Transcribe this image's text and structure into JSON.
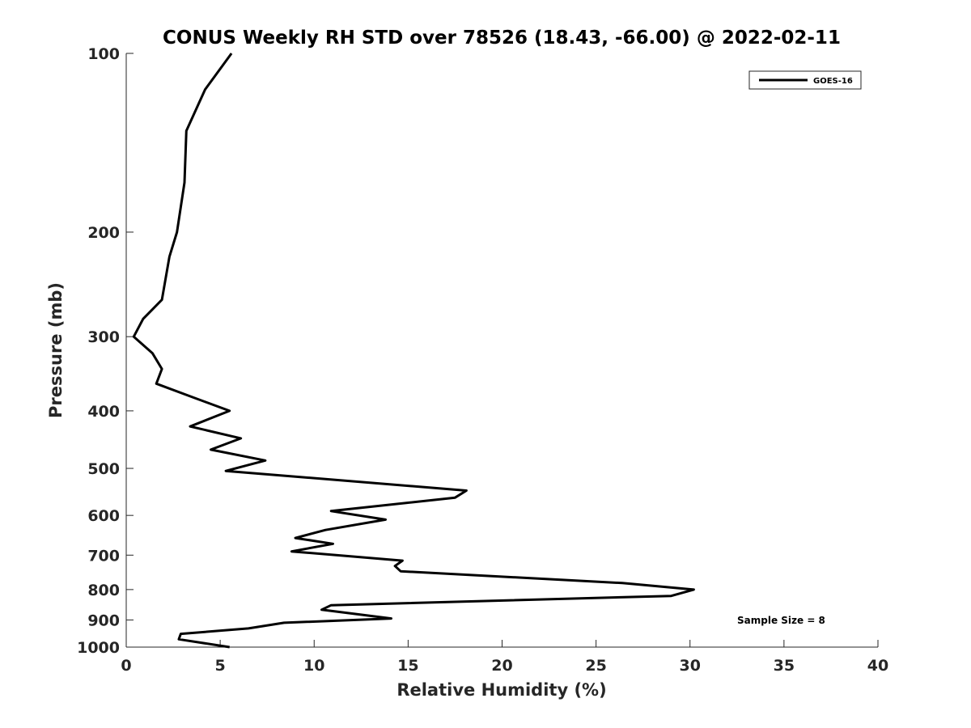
{
  "chart_data": {
    "type": "line",
    "title": "CONUS Weekly RH STD over 78526 (18.43, -66.00) @ 2022-02-11",
    "xlabel": "Relative Humidity (%)",
    "ylabel": "Pressure (mb)",
    "xlim": [
      0,
      40
    ],
    "ylim": [
      100,
      1000
    ],
    "yscale": "log",
    "yreversed": true,
    "grid": false,
    "legend_position": "top-right",
    "xticks": [
      0,
      5,
      10,
      15,
      20,
      25,
      30,
      35,
      40
    ],
    "xtick_labels": [
      "0",
      "5",
      "10",
      "15",
      "20",
      "25",
      "30",
      "35",
      "40"
    ],
    "yticks": [
      100,
      200,
      300,
      400,
      500,
      600,
      700,
      800,
      900,
      1000
    ],
    "ytick_labels": [
      "100",
      "200",
      "300",
      "400",
      "500",
      "600",
      "700",
      "800",
      "900",
      "1000"
    ],
    "series": [
      {
        "name": "GOES-16",
        "color": "#000000",
        "x": [
          5.6,
          4.2,
          3.2,
          3.1,
          2.7,
          2.3,
          1.9,
          0.9,
          0.4,
          1.4,
          1.9,
          1.6,
          3.6,
          5.5,
          3.4,
          6.1,
          4.5,
          7.4,
          5.3,
          18.1,
          17.5,
          10.9,
          13.8,
          10.6,
          9.0,
          11.0,
          8.8,
          14.7,
          14.3,
          14.6,
          26.4,
          30.2,
          29.0,
          10.9,
          10.4,
          14.1,
          8.4,
          6.5,
          2.9,
          2.8,
          5.5
        ],
        "y": [
          100,
          115,
          135,
          165,
          200,
          220,
          260,
          280,
          300,
          320,
          340,
          360,
          380,
          400,
          425,
          445,
          465,
          485,
          505,
          545,
          560,
          590,
          610,
          635,
          655,
          670,
          690,
          715,
          730,
          745,
          780,
          800,
          820,
          850,
          865,
          895,
          910,
          930,
          950,
          970,
          1000
        ]
      }
    ],
    "annotations": [
      "Sample Size = 8"
    ]
  }
}
